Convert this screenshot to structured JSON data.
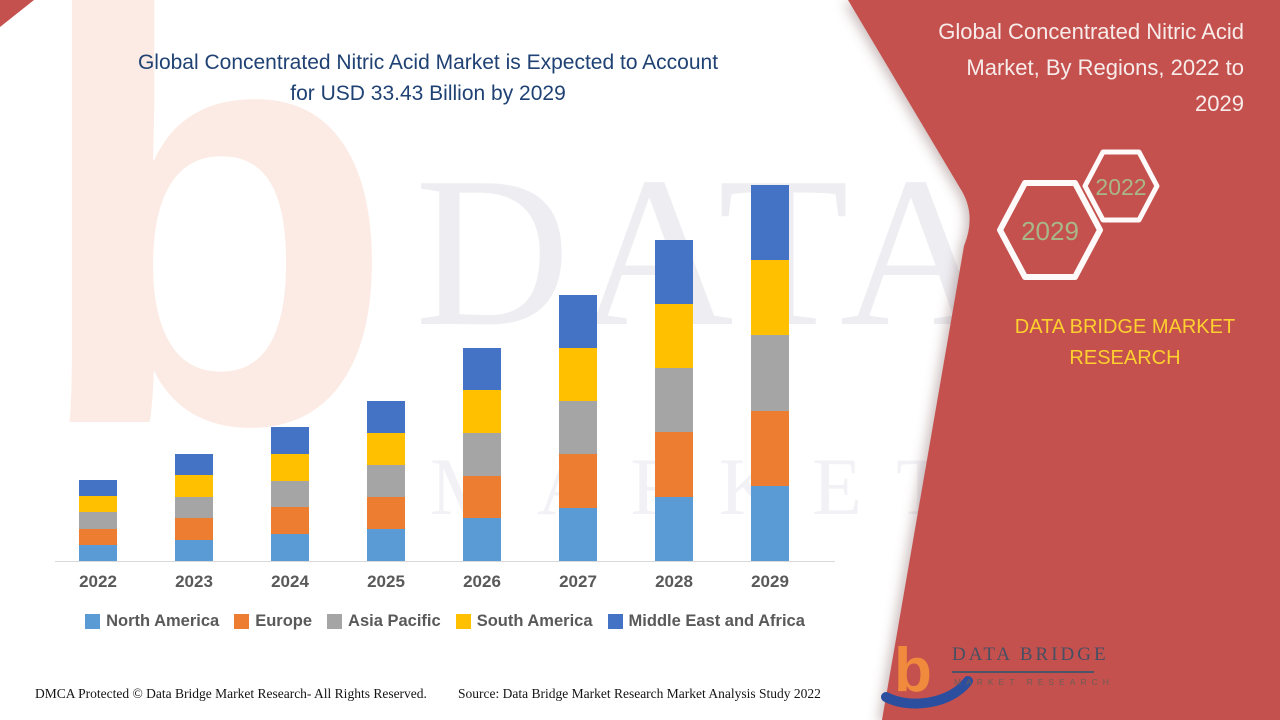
{
  "header": {
    "title_line1": "Global Concentrated Nitric Acid Market is Expected to Account",
    "title_line2": "for USD 33.43 Billion by 2029"
  },
  "chart_data": {
    "type": "bar",
    "stacked": true,
    "title": "Global Concentrated Nitric Acid Market is Expected to Account for USD 33.43 Billion by 2029",
    "unit": "USD Billion",
    "categories": [
      "2022",
      "2023",
      "2024",
      "2025",
      "2026",
      "2027",
      "2028",
      "2029"
    ],
    "series": [
      {
        "name": "North America",
        "color": "#5B9BD5",
        "values": [
          1.44,
          1.9,
          2.38,
          2.86,
          3.8,
          4.74,
          5.72,
          6.69
        ]
      },
      {
        "name": "Europe",
        "color": "#ED7D31",
        "values": [
          1.44,
          1.9,
          2.38,
          2.86,
          3.8,
          4.74,
          5.72,
          6.69
        ]
      },
      {
        "name": "Asia Pacific",
        "color": "#A5A5A5",
        "values": [
          1.44,
          1.9,
          2.38,
          2.86,
          3.8,
          4.74,
          5.72,
          6.69
        ]
      },
      {
        "name": "South America",
        "color": "#FFC000",
        "values": [
          1.44,
          1.9,
          2.38,
          2.86,
          3.8,
          4.74,
          5.72,
          6.69
        ]
      },
      {
        "name": "Middle East and Africa",
        "color": "#4472C4",
        "values": [
          1.44,
          1.9,
          2.38,
          2.86,
          3.8,
          4.74,
          5.72,
          6.69
        ]
      }
    ],
    "totals_estimated": [
      7.2,
      9.5,
      11.9,
      14.3,
      19.0,
      23.7,
      28.6,
      33.43
    ],
    "ylim": [
      0,
      35
    ],
    "gridlines": false,
    "axis_labels_shown": false,
    "legend_position": "bottom"
  },
  "panel": {
    "bg_color": "#C5514E",
    "title_lines": [
      "Global Concentrated Nitric Acid",
      "Market, By Regions, 2022 to",
      "2029"
    ],
    "hexagons": [
      {
        "label": "2022"
      },
      {
        "label": "2029"
      }
    ],
    "hexagon_label_color": "#A9B787",
    "brand_lines": [
      "DATA BRIDGE MARKET",
      "RESEARCH"
    ],
    "brand_color": "#FFD02E",
    "logo": {
      "name": "DATA BRIDGE",
      "subname": "MARKET RESEARCH"
    }
  },
  "watermark": {
    "line1": "DATA BRIDGE",
    "line2": "MARKET RESEARCH",
    "letter": "b"
  },
  "footer": {
    "dmca": "DMCA Protected © Data Bridge Market Research- All Rights Reserved.",
    "source": "Source: Data Bridge Market Research Market Analysis Study 2022"
  }
}
